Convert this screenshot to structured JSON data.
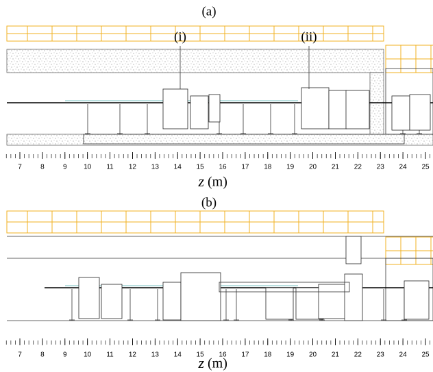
{
  "panels": [
    {
      "label": "(a)",
      "callouts": [
        "(i)",
        "(ii)"
      ],
      "axis": {
        "ticks": [
          7,
          8,
          9,
          10,
          11,
          12,
          13,
          14,
          15,
          16,
          17,
          18,
          19,
          20,
          21,
          22,
          23,
          24,
          25
        ],
        "variable": "z",
        "unit": "(m)"
      }
    },
    {
      "label": "(b)",
      "callouts": [],
      "axis": {
        "ticks": [
          7,
          8,
          9,
          10,
          11,
          12,
          13,
          14,
          15,
          16,
          17,
          18,
          19,
          20,
          21,
          22,
          23,
          24,
          25
        ],
        "variable": "z",
        "unit": "(m)"
      }
    }
  ]
}
